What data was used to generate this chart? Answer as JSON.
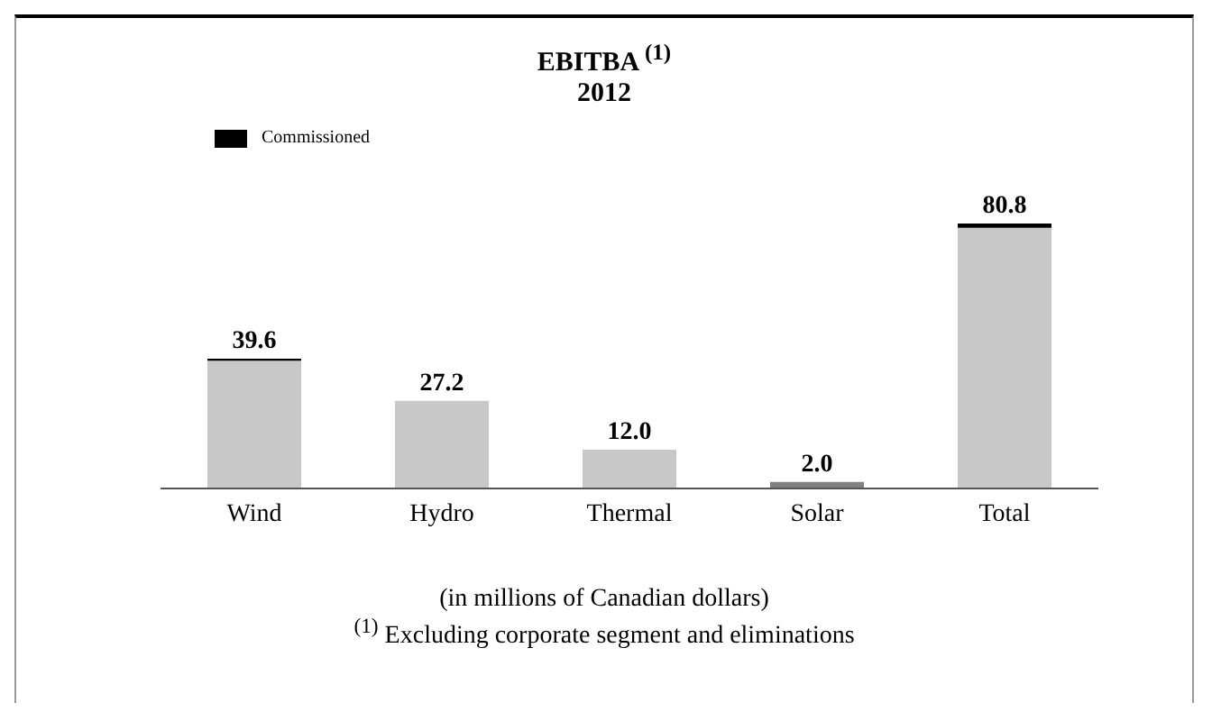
{
  "chart_data": {
    "type": "bar",
    "title": "EBITBA $^{(1)}$",
    "subtitle": "2012",
    "categories": [
      "Wind",
      "Hydro",
      "Thermal",
      "Solar",
      "Total"
    ],
    "stacked": true,
    "series": [
      {
        "colors": [
          "#c8c8c8",
          "#c8c8c8",
          "#c8c8c8",
          "#808080",
          "#c8c8c8"
        ],
        "values": [
          39.6,
          27.2,
          12.0,
          2.0,
          80.8
        ],
        "value_labels": [
          "39.6",
          "27.2",
          "12.0",
          "2.0",
          "80.8"
        ]
      },
      {
        "name": "Commissioned",
        "color": "#000000",
        "values": [
          0.6,
          0,
          0,
          0,
          1.3
        ],
        "value_labels": [
          null,
          null,
          null,
          null,
          null
        ]
      }
    ],
    "legend": "top left",
    "annotations": [
      "(in millions of Canadian dollars)",
      "$^{(1)}$ Excluding corporate segment and eliminations"
    ]
  }
}
